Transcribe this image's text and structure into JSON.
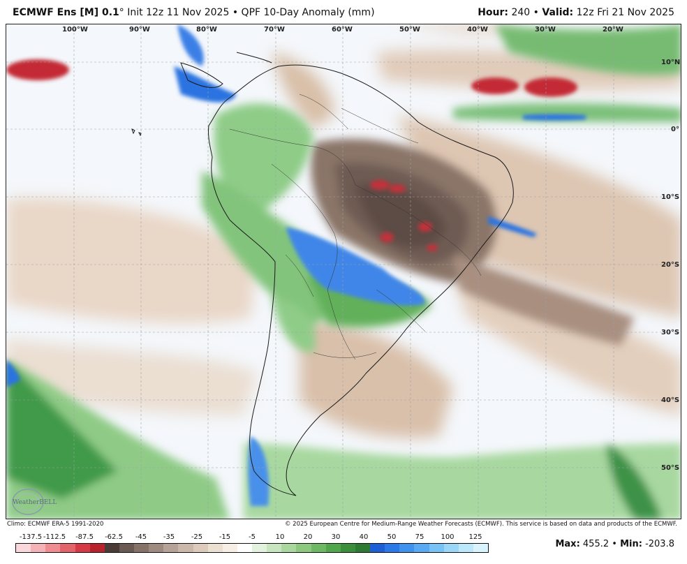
{
  "header": {
    "model": "ECMWF Ens [M] 0.1",
    "degree": "°",
    "init": "Init 12z 11 Nov 2025",
    "product": "QPF 10-Day Anomaly (mm)",
    "hour_label": "Hour:",
    "hour": "240",
    "valid_label": "Valid:",
    "valid": "12z Fri 21 Nov 2025"
  },
  "map": {
    "longitude_labels": [
      "100°W",
      "90°W",
      "80°W",
      "70°W",
      "60°W",
      "50°W",
      "40°W",
      "30°W",
      "20°W"
    ],
    "latitude_labels": [
      "10°N",
      "0°",
      "10°S",
      "20°S",
      "30°S",
      "40°S",
      "50°S"
    ],
    "logo_text": "WeatherBELL"
  },
  "footer": {
    "climo": "Climo: ECMWF ERA-5 1991-2020",
    "copyright": "© 2025 European Centre for Medium-Range Weather Forecasts (ECMWF). This service is based on data and products of the ECMWF.",
    "max_label": "Max:",
    "max": "455.2",
    "min_label": "Min:",
    "min": "-203.8"
  },
  "legend": {
    "labels": [
      "-137.5",
      "-112.5",
      "-87.5",
      "-62.5",
      "-45",
      "-35",
      "-25",
      "-15",
      "-5",
      "10",
      "20",
      "30",
      "40",
      "50",
      "75",
      "100",
      "125"
    ],
    "colors": [
      "#f9d7da",
      "#f4b2b6",
      "#ee8c92",
      "#e3636b",
      "#d53a44",
      "#b8222c",
      "#4a3b36",
      "#6a5a52",
      "#857269",
      "#9f8a80",
      "#b7a297",
      "#cbb8ab",
      "#dccbbd",
      "#ece0d3",
      "#f7efe6",
      "#ffffff",
      "#e3f2df",
      "#c7e6bf",
      "#a9d79e",
      "#8cc97f",
      "#6fb863",
      "#51a54a",
      "#3b8f3a",
      "#2e7a32",
      "#1f5fd6",
      "#2b79e6",
      "#3f92ee",
      "#59aaf2",
      "#78c2f6",
      "#9ad6f8",
      "#bde7fb",
      "#d9f4fd"
    ]
  }
}
